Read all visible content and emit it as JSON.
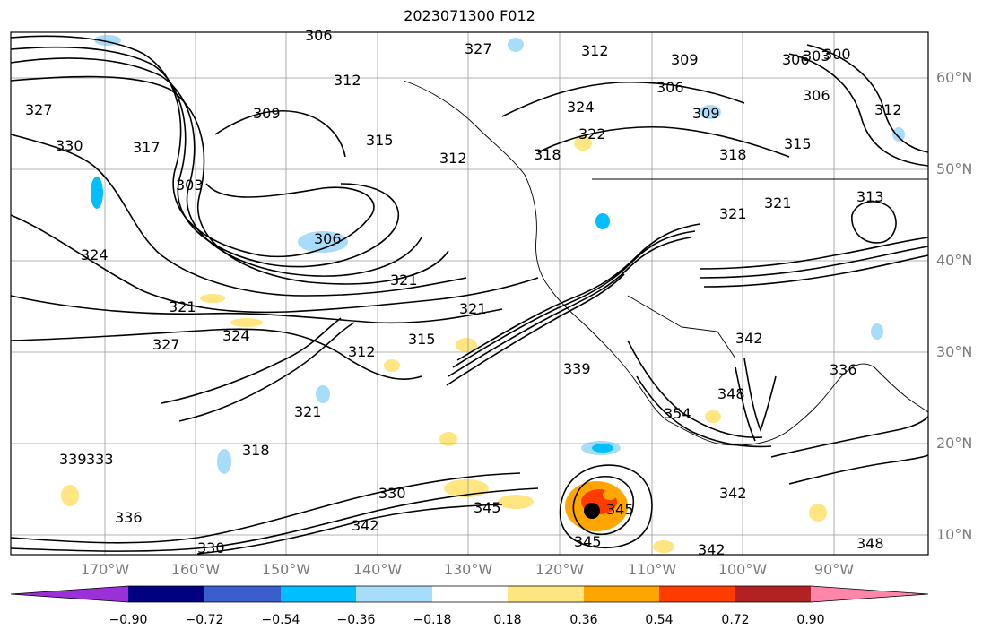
{
  "title": "2023071300 F012",
  "map": {
    "lat_labels": [
      "60°N",
      "50°N",
      "40°N",
      "30°N",
      "20°N",
      "10°N"
    ],
    "lon_labels": [
      "170°W",
      "160°W",
      "150°W",
      "140°W",
      "130°W",
      "120°W",
      "110°W",
      "100°W",
      "90°W"
    ],
    "contour_labels": [
      "327",
      "312",
      "309",
      "306",
      "303",
      "300",
      "312",
      "306",
      "309",
      "306",
      "312",
      "324",
      "322",
      "318",
      "315",
      "315",
      "318",
      "321",
      "313",
      "330",
      "317",
      "303",
      "306",
      "309",
      "324",
      "321",
      "321",
      "321",
      "327",
      "324",
      "312",
      "315",
      "321",
      "339",
      "342",
      "342",
      "336",
      "348",
      "354",
      "318",
      "321",
      "333",
      "336",
      "339",
      "330",
      "330",
      "342",
      "345",
      "345",
      "342",
      "345",
      "348",
      "327",
      "312",
      "306"
    ]
  },
  "colorbar": {
    "tick_labels": [
      "−0.90",
      "−0.72",
      "−0.54",
      "−0.36",
      "−0.18",
      "0.18",
      "0.36",
      "0.54",
      "0.72",
      "0.90"
    ],
    "colors": [
      "#9b30d9",
      "#000080",
      "#3a5fcd",
      "#00bfff",
      "#a8ddfa",
      "#ffffff",
      "#ffe680",
      "#ffa500",
      "#ff3c00",
      "#b22222",
      "#ff85aa"
    ]
  }
}
